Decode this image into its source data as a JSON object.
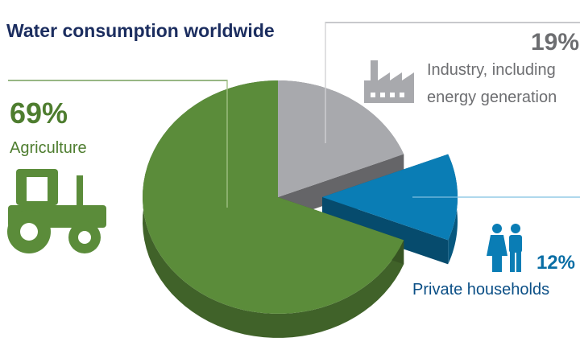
{
  "chart_data": {
    "type": "pie",
    "title": "Water consumption worldwide",
    "categories": [
      "Agriculture",
      "Industry, including energy generation",
      "Private households"
    ],
    "values": [
      69,
      19,
      12
    ],
    "value_labels": [
      "69%",
      "19%",
      "12%"
    ],
    "colors": [
      "#5b8c3a",
      "#a8a9ad",
      "#0a7db5"
    ]
  }
}
